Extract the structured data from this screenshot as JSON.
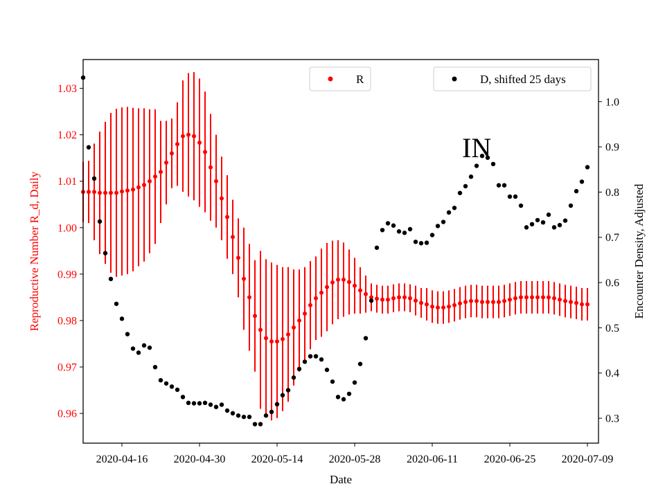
{
  "chart_data": {
    "type": "scatter",
    "annotation": "IN",
    "x_axis": {
      "label": "Date",
      "start_date": "2020-04-09",
      "end_date": "2020-07-11",
      "tick_labels": [
        "2020-04-16",
        "2020-04-30",
        "2020-05-14",
        "2020-05-28",
        "2020-06-11",
        "2020-06-25",
        "2020-07-09"
      ]
    },
    "y_left": {
      "label": "Reproductive Number R_d, Daily",
      "color": "#ff0000",
      "range": [
        0.9536,
        1.0362
      ],
      "ticks": [
        0.96,
        0.97,
        0.98,
        0.99,
        1.0,
        1.01,
        1.02,
        1.03
      ],
      "tick_labels": [
        "0.96",
        "0.97",
        "0.98",
        "0.99",
        "1.00",
        "1.01",
        "1.02",
        "1.03"
      ]
    },
    "y_right": {
      "label": "Encounter Density, Adjusted",
      "color": "#000000",
      "range": [
        0.245,
        1.093
      ],
      "ticks": [
        0.3,
        0.4,
        0.5,
        0.6,
        0.7,
        0.8,
        0.9,
        1.0
      ],
      "tick_labels": [
        "0.3",
        "0.4",
        "0.5",
        "0.6",
        "0.7",
        "0.8",
        "0.9",
        "1.0"
      ]
    },
    "legend": {
      "r": {
        "label": "R",
        "color": "#ff0000",
        "placement": "top-center"
      },
      "d": {
        "label": "D, shifted 25 days",
        "color": "#000000",
        "placement": "top-right"
      }
    },
    "series_r": {
      "name": "R",
      "color": "#ff0000",
      "points": [
        [
          "2020-04-09",
          1.0077,
          0.0065
        ],
        [
          "2020-04-10",
          1.0077,
          0.0067
        ],
        [
          "2020-04-11",
          1.0077,
          0.0104
        ],
        [
          "2020-04-12",
          1.0075,
          0.0132
        ],
        [
          "2020-04-13",
          1.0075,
          0.0153
        ],
        [
          "2020-04-14",
          1.0075,
          0.0172
        ],
        [
          "2020-04-15",
          1.0075,
          0.0181
        ],
        [
          "2020-04-16",
          1.0078,
          0.0181
        ],
        [
          "2020-04-17",
          1.008,
          0.018
        ],
        [
          "2020-04-18",
          1.0082,
          0.0176
        ],
        [
          "2020-04-19",
          1.0087,
          0.017
        ],
        [
          "2020-04-20",
          1.0092,
          0.0165
        ],
        [
          "2020-04-21",
          1.01,
          0.0155
        ],
        [
          "2020-04-22",
          1.011,
          0.0145
        ],
        [
          "2020-04-23",
          1.012,
          0.011
        ],
        [
          "2020-04-24",
          1.014,
          0.009
        ],
        [
          "2020-04-25",
          1.016,
          0.0075
        ],
        [
          "2020-04-26",
          1.018,
          0.009
        ],
        [
          "2020-04-27",
          1.0197,
          0.012
        ],
        [
          "2020-04-28",
          1.02,
          0.0133
        ],
        [
          "2020-04-29",
          1.0197,
          0.0138
        ],
        [
          "2020-04-30",
          1.0183,
          0.0138
        ],
        [
          "2020-05-01",
          1.0163,
          0.013
        ],
        [
          "2020-05-02",
          1.013,
          0.0115
        ],
        [
          "2020-05-03",
          1.01,
          0.01
        ],
        [
          "2020-05-04",
          1.0063,
          0.009
        ],
        [
          "2020-05-05",
          1.0023,
          0.009
        ],
        [
          "2020-05-06",
          0.998,
          0.008
        ],
        [
          "2020-05-07",
          0.9935,
          0.0085
        ],
        [
          "2020-05-08",
          0.989,
          0.011
        ],
        [
          "2020-05-09",
          0.985,
          0.0115
        ],
        [
          "2020-05-10",
          0.981,
          0.012
        ],
        [
          "2020-05-11",
          0.978,
          0.017
        ],
        [
          "2020-05-12",
          0.9762,
          0.017
        ],
        [
          "2020-05-13",
          0.9755,
          0.017
        ],
        [
          "2020-05-14",
          0.9755,
          0.0165
        ],
        [
          "2020-05-15",
          0.976,
          0.0155
        ],
        [
          "2020-05-16",
          0.977,
          0.0145
        ],
        [
          "2020-05-17",
          0.9785,
          0.0125
        ],
        [
          "2020-05-18",
          0.98,
          0.011
        ],
        [
          "2020-05-19",
          0.9815,
          0.01
        ],
        [
          "2020-05-20",
          0.9833,
          0.0095
        ],
        [
          "2020-05-21",
          0.9848,
          0.009
        ],
        [
          "2020-05-22",
          0.986,
          0.0095
        ],
        [
          "2020-05-23",
          0.9872,
          0.0095
        ],
        [
          "2020-05-24",
          0.9882,
          0.009
        ],
        [
          "2020-05-25",
          0.9888,
          0.0085
        ],
        [
          "2020-05-26",
          0.9888,
          0.008
        ],
        [
          "2020-05-27",
          0.9883,
          0.007
        ],
        [
          "2020-05-28",
          0.9875,
          0.006
        ],
        [
          "2020-05-29",
          0.9865,
          0.005
        ],
        [
          "2020-05-30",
          0.9857,
          0.004
        ],
        [
          "2020-05-31",
          0.985,
          0.003
        ],
        [
          "2020-06-01",
          0.9847,
          0.003
        ],
        [
          "2020-06-02",
          0.9845,
          0.003
        ],
        [
          "2020-06-03",
          0.9845,
          0.003
        ],
        [
          "2020-06-04",
          0.9848,
          0.003
        ],
        [
          "2020-06-05",
          0.985,
          0.003
        ],
        [
          "2020-06-06",
          0.985,
          0.003
        ],
        [
          "2020-06-07",
          0.9848,
          0.003
        ],
        [
          "2020-06-08",
          0.9843,
          0.0032
        ],
        [
          "2020-06-09",
          0.9838,
          0.0032
        ],
        [
          "2020-06-10",
          0.9835,
          0.0035
        ],
        [
          "2020-06-11",
          0.983,
          0.0035
        ],
        [
          "2020-06-12",
          0.9828,
          0.0035
        ],
        [
          "2020-06-13",
          0.9828,
          0.0035
        ],
        [
          "2020-06-14",
          0.983,
          0.0035
        ],
        [
          "2020-06-15",
          0.9833,
          0.0035
        ],
        [
          "2020-06-16",
          0.9837,
          0.0035
        ],
        [
          "2020-06-17",
          0.984,
          0.0035
        ],
        [
          "2020-06-18",
          0.9842,
          0.0035
        ],
        [
          "2020-06-19",
          0.9842,
          0.0035
        ],
        [
          "2020-06-20",
          0.984,
          0.0035
        ],
        [
          "2020-06-21",
          0.984,
          0.0035
        ],
        [
          "2020-06-22",
          0.984,
          0.0035
        ],
        [
          "2020-06-23",
          0.984,
          0.0035
        ],
        [
          "2020-06-24",
          0.9842,
          0.0035
        ],
        [
          "2020-06-25",
          0.9845,
          0.0035
        ],
        [
          "2020-06-26",
          0.9848,
          0.0035
        ],
        [
          "2020-06-27",
          0.985,
          0.0035
        ],
        [
          "2020-06-28",
          0.985,
          0.0035
        ],
        [
          "2020-06-29",
          0.985,
          0.0035
        ],
        [
          "2020-06-30",
          0.985,
          0.0035
        ],
        [
          "2020-07-01",
          0.985,
          0.0035
        ],
        [
          "2020-07-02",
          0.985,
          0.0035
        ],
        [
          "2020-07-03",
          0.9848,
          0.0035
        ],
        [
          "2020-07-04",
          0.9845,
          0.0035
        ],
        [
          "2020-07-05",
          0.9842,
          0.0035
        ],
        [
          "2020-07-06",
          0.984,
          0.0035
        ],
        [
          "2020-07-07",
          0.9838,
          0.0035
        ],
        [
          "2020-07-08",
          0.9835,
          0.0035
        ],
        [
          "2020-07-09",
          0.9835,
          0.0035
        ]
      ]
    },
    "series_d": {
      "name": "D, shifted 25 days",
      "color": "#000000",
      "points": [
        [
          "2020-04-09",
          1.053
        ],
        [
          "2020-04-10",
          0.899
        ],
        [
          "2020-04-11",
          0.83
        ],
        [
          "2020-04-12",
          0.735
        ],
        [
          "2020-04-13",
          0.665
        ],
        [
          "2020-04-14",
          0.608
        ],
        [
          "2020-04-15",
          0.553
        ],
        [
          "2020-04-16",
          0.52
        ],
        [
          "2020-04-17",
          0.486
        ],
        [
          "2020-04-18",
          0.454
        ],
        [
          "2020-04-19",
          0.445
        ],
        [
          "2020-04-20",
          0.461
        ],
        [
          "2020-04-21",
          0.456
        ],
        [
          "2020-04-22",
          0.413
        ],
        [
          "2020-04-23",
          0.384
        ],
        [
          "2020-04-24",
          0.377
        ],
        [
          "2020-04-25",
          0.37
        ],
        [
          "2020-04-26",
          0.363
        ],
        [
          "2020-04-27",
          0.347
        ],
        [
          "2020-04-28",
          0.334
        ],
        [
          "2020-04-29",
          0.333
        ],
        [
          "2020-04-30",
          0.333
        ],
        [
          "2020-05-01",
          0.334
        ],
        [
          "2020-05-02",
          0.33
        ],
        [
          "2020-05-03",
          0.325
        ],
        [
          "2020-05-04",
          0.33
        ],
        [
          "2020-05-05",
          0.317
        ],
        [
          "2020-05-06",
          0.311
        ],
        [
          "2020-05-07",
          0.306
        ],
        [
          "2020-05-08",
          0.303
        ],
        [
          "2020-05-09",
          0.303
        ],
        [
          "2020-05-10",
          0.287
        ],
        [
          "2020-05-11",
          0.287
        ],
        [
          "2020-05-12",
          0.306
        ],
        [
          "2020-05-13",
          0.314
        ],
        [
          "2020-05-14",
          0.331
        ],
        [
          "2020-05-15",
          0.351
        ],
        [
          "2020-05-16",
          0.362
        ],
        [
          "2020-05-17",
          0.39
        ],
        [
          "2020-05-18",
          0.409
        ],
        [
          "2020-05-19",
          0.425
        ],
        [
          "2020-05-20",
          0.437
        ],
        [
          "2020-05-21",
          0.437
        ],
        [
          "2020-05-22",
          0.43
        ],
        [
          "2020-05-23",
          0.407
        ],
        [
          "2020-05-24",
          0.381
        ],
        [
          "2020-05-25",
          0.347
        ],
        [
          "2020-05-26",
          0.342
        ],
        [
          "2020-05-27",
          0.354
        ],
        [
          "2020-05-28",
          0.379
        ],
        [
          "2020-05-29",
          0.42
        ],
        [
          "2020-05-30",
          0.477
        ],
        [
          "2020-05-31",
          0.56
        ],
        [
          "2020-06-01",
          0.677
        ],
        [
          "2020-06-02",
          0.716
        ],
        [
          "2020-06-03",
          0.731
        ],
        [
          "2020-06-04",
          0.726
        ],
        [
          "2020-06-05",
          0.713
        ],
        [
          "2020-06-06",
          0.71
        ],
        [
          "2020-06-07",
          0.718
        ],
        [
          "2020-06-08",
          0.69
        ],
        [
          "2020-06-09",
          0.687
        ],
        [
          "2020-06-10",
          0.688
        ],
        [
          "2020-06-11",
          0.705
        ],
        [
          "2020-06-12",
          0.725
        ],
        [
          "2020-06-13",
          0.734
        ],
        [
          "2020-06-14",
          0.755
        ],
        [
          "2020-06-15",
          0.765
        ],
        [
          "2020-06-16",
          0.798
        ],
        [
          "2020-06-17",
          0.813
        ],
        [
          "2020-06-18",
          0.834
        ],
        [
          "2020-06-19",
          0.858
        ],
        [
          "2020-06-20",
          0.88
        ],
        [
          "2020-06-21",
          0.876
        ],
        [
          "2020-06-22",
          0.862
        ],
        [
          "2020-06-23",
          0.815
        ],
        [
          "2020-06-24",
          0.815
        ],
        [
          "2020-06-25",
          0.79
        ],
        [
          "2020-06-26",
          0.79
        ],
        [
          "2020-06-27",
          0.77
        ],
        [
          "2020-06-28",
          0.722
        ],
        [
          "2020-06-29",
          0.729
        ],
        [
          "2020-06-30",
          0.738
        ],
        [
          "2020-07-01",
          0.733
        ],
        [
          "2020-07-02",
          0.75
        ],
        [
          "2020-07-03",
          0.722
        ],
        [
          "2020-07-04",
          0.727
        ],
        [
          "2020-07-05",
          0.737
        ],
        [
          "2020-07-06",
          0.77
        ],
        [
          "2020-07-07",
          0.802
        ],
        [
          "2020-07-08",
          0.823
        ],
        [
          "2020-07-09",
          0.855
        ]
      ]
    }
  }
}
